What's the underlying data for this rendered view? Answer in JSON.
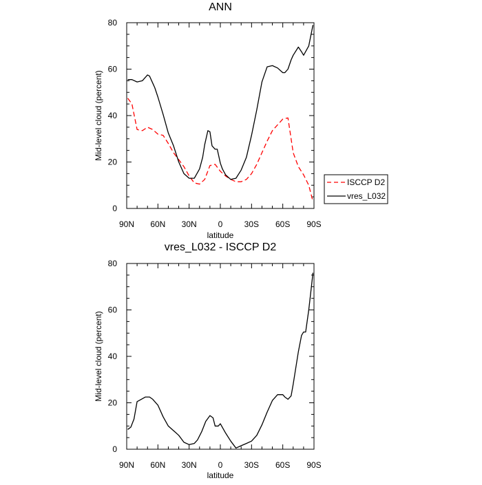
{
  "chart_data": [
    {
      "type": "line",
      "title": "ANN",
      "xlabel": "latitude",
      "ylabel": "Mid-level cloud (percent)",
      "xlim": [
        90,
        -90
      ],
      "ylim": [
        0,
        80
      ],
      "yticks": [
        0,
        20,
        40,
        60,
        80
      ],
      "xticks": [
        {
          "value": 90,
          "label": "90N"
        },
        {
          "value": 60,
          "label": "60N"
        },
        {
          "value": 30,
          "label": "30N"
        },
        {
          "value": 0,
          "label": "0"
        },
        {
          "value": -30,
          "label": "30S"
        },
        {
          "value": -60,
          "label": "60S"
        },
        {
          "value": -90,
          "label": "90S"
        }
      ],
      "legend_position": "right",
      "series": [
        {
          "name": "ISCCP D2",
          "color": "#ff0000",
          "dash": "dashed",
          "x": [
            89,
            85,
            80,
            75,
            70,
            65,
            60,
            55,
            50,
            45,
            40,
            35,
            30,
            25,
            20,
            15,
            10,
            5,
            0,
            -5,
            -10,
            -15,
            -20,
            -25,
            -30,
            -35,
            -40,
            -45,
            -50,
            -55,
            -60,
            -65,
            -70,
            -75,
            -80,
            -85,
            -89
          ],
          "y": [
            47.5,
            45,
            34,
            33.5,
            35,
            34,
            32,
            31.5,
            28,
            24,
            21,
            18,
            14,
            11,
            10.5,
            12.5,
            18.5,
            19,
            16,
            14,
            12.5,
            11.5,
            11.5,
            12.5,
            15,
            19,
            24,
            29,
            33.5,
            36,
            38.5,
            39,
            24,
            18,
            14.5,
            10,
            3
          ]
        },
        {
          "name": "vres_L032",
          "color": "#000000",
          "dash": "solid",
          "x": [
            89,
            85,
            80,
            75,
            70,
            68,
            65,
            63,
            60,
            55,
            50,
            45,
            40,
            35,
            30,
            25,
            20,
            17,
            15,
            12,
            10,
            8,
            5,
            3,
            0,
            -2,
            -5,
            -10,
            -15,
            -20,
            -25,
            -30,
            -35,
            -40,
            -45,
            -50,
            -55,
            -60,
            -62,
            -65,
            -68,
            -70,
            -75,
            -78,
            -80,
            -85,
            -89
          ],
          "y": [
            55.5,
            55.5,
            54.5,
            55,
            57.5,
            57,
            54,
            52,
            48,
            40.5,
            32.5,
            27,
            20,
            15,
            13,
            13,
            17,
            22,
            27.5,
            33.5,
            33,
            27,
            25.5,
            25.5,
            19.5,
            17,
            14.5,
            12.5,
            13,
            16.5,
            22,
            31.5,
            42.5,
            54.5,
            61,
            61.5,
            60.5,
            58.5,
            58.5,
            60,
            64,
            66,
            69.5,
            67.5,
            66,
            70,
            79
          ]
        }
      ]
    },
    {
      "type": "line",
      "title": "vres_L032 - ISCCP D2",
      "xlabel": "latitude",
      "ylabel": "Mid-level cloud (percent)",
      "xlim": [
        90,
        -90
      ],
      "ylim": [
        0,
        80
      ],
      "yticks": [
        0,
        20,
        40,
        60,
        80
      ],
      "xticks": [
        {
          "value": 90,
          "label": "90N"
        },
        {
          "value": 60,
          "label": "60N"
        },
        {
          "value": 30,
          "label": "30N"
        },
        {
          "value": 0,
          "label": "0"
        },
        {
          "value": -30,
          "label": "30S"
        },
        {
          "value": -60,
          "label": "60S"
        },
        {
          "value": -90,
          "label": "90S"
        }
      ],
      "series": [
        {
          "name": "vres_L032 - ISCCP D2",
          "color": "#000000",
          "dash": "solid",
          "x": [
            89,
            86,
            83,
            80,
            76,
            72,
            68,
            65,
            60,
            55,
            50,
            45,
            40,
            35,
            30,
            25,
            22,
            18,
            14,
            10,
            7,
            5,
            2,
            0,
            -5,
            -10,
            -15,
            -20,
            -25,
            -30,
            -35,
            -40,
            -45,
            -50,
            -55,
            -60,
            -62,
            -65,
            -68,
            -70,
            -75,
            -78,
            -80,
            -82,
            -85,
            -87,
            -89
          ],
          "y": [
            8.5,
            9.5,
            13,
            20.5,
            21.5,
            22.5,
            22.5,
            21.5,
            19,
            14,
            10,
            8,
            6,
            3,
            2,
            2.5,
            4,
            7.5,
            12,
            14.5,
            13.5,
            10,
            10,
            11,
            7,
            3.5,
            0.5,
            1.5,
            2.5,
            3.5,
            6,
            10.5,
            16,
            21,
            23.5,
            23.5,
            22.5,
            21.5,
            23,
            28,
            42,
            49,
            50.5,
            50.5,
            60,
            68,
            76
          ]
        }
      ]
    }
  ]
}
